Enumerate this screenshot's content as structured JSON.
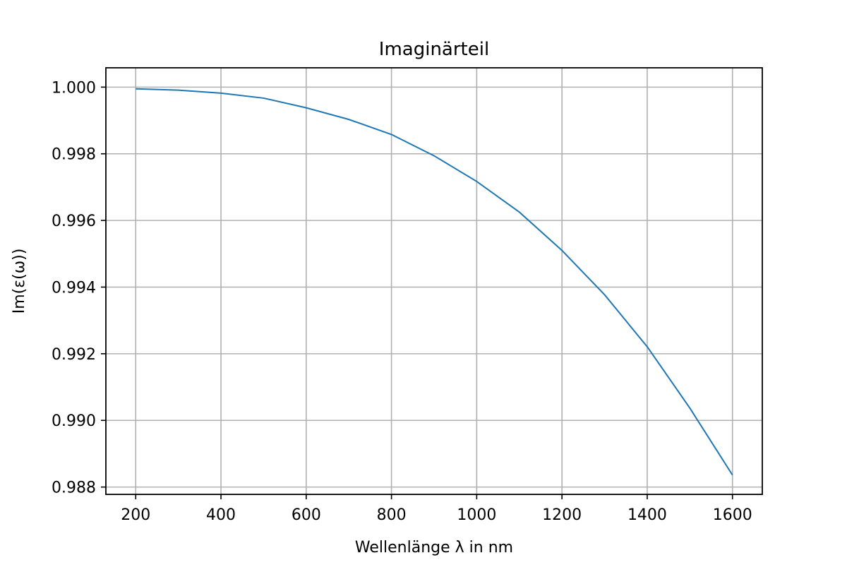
{
  "chart_data": {
    "type": "line",
    "title": "Imaginärteil",
    "xlabel": "Wellenlänge λ in nm",
    "ylabel": "Im(ε(ω))",
    "xlim": [
      130,
      1670
    ],
    "ylim": [
      0.98778,
      1.00058
    ],
    "xticks": [
      200,
      400,
      600,
      800,
      1000,
      1200,
      1400,
      1600
    ],
    "yticks": [
      0.988,
      0.99,
      0.992,
      0.994,
      0.996,
      0.998,
      1.0
    ],
    "xtick_labels": [
      "200",
      "400",
      "600",
      "800",
      "1000",
      "1200",
      "1400",
      "1600"
    ],
    "ytick_labels": [
      "0.988",
      "0.990",
      "0.992",
      "0.994",
      "0.996",
      "0.998",
      "1.000"
    ],
    "grid": true,
    "series": [
      {
        "color": "#1f77b4",
        "x": [
          200,
          300,
          400,
          500,
          600,
          700,
          800,
          900,
          1000,
          1100,
          1200,
          1300,
          1400,
          1500,
          1600
        ],
        "y": [
          0.99995,
          0.99991,
          0.99982,
          0.99967,
          0.99938,
          0.99903,
          0.99858,
          0.99794,
          0.99717,
          0.99625,
          0.9951,
          0.99377,
          0.99221,
          0.99037,
          0.98836
        ]
      }
    ]
  }
}
